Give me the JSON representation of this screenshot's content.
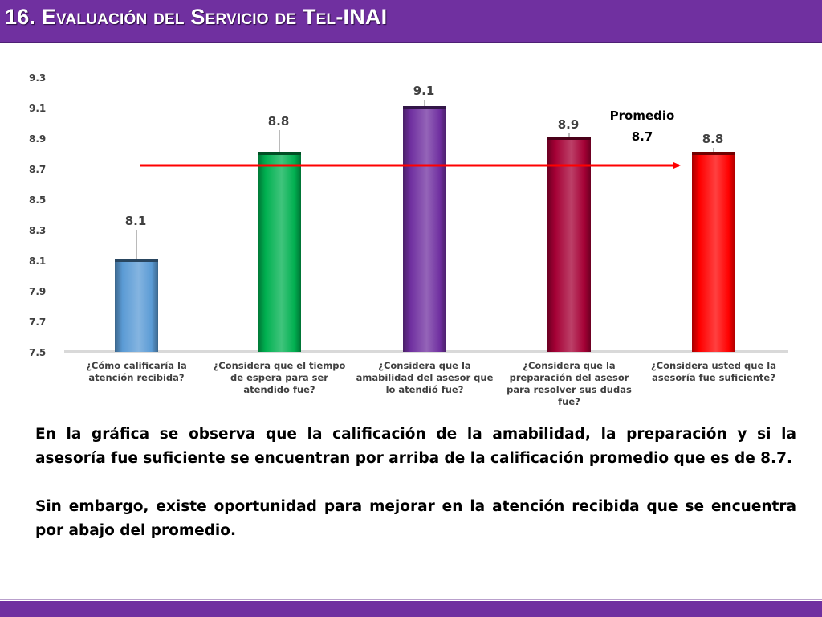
{
  "title": "16. Evaluación del Servicio de Tel-INAI",
  "chart_data": {
    "type": "bar",
    "categories": [
      "¿Cómo calificaría la atención recibida?",
      "¿Considera que el tiempo de espera para ser atendido fue?",
      "¿Considera que la amabilidad del asesor que lo atendió fue?",
      "¿Considera que la preparación del asesor para resolver sus dudas fue?",
      "¿Considera usted que la asesoría fue suficiente?"
    ],
    "values": [
      8.1,
      8.8,
      9.1,
      8.9,
      8.8
    ],
    "value_labels": [
      "8.1",
      "8.8",
      "9.1",
      "8.9",
      "8.8"
    ],
    "colors": [
      "#5b9bd5",
      "#00b050",
      "#7030a0",
      "#a50035",
      "#ff0000"
    ],
    "ylim": [
      7.5,
      9.3
    ],
    "yticks": [
      "9.3",
      "9.1",
      "8.9",
      "8.7",
      "8.5",
      "8.3",
      "8.1",
      "7.9",
      "7.7",
      "7.5"
    ],
    "average": 8.7,
    "average_label": "Promedio",
    "average_value_label": "8.7",
    "average_color": "#ff0000",
    "title": "",
    "xlabel": "",
    "ylabel": "",
    "grid": false
  },
  "notes": [
    "En la gráfica se observa que la calificación de la amabilidad, la preparación y si la asesoría fue suficiente se encuentran por arriba de la calificación promedio que es de 8.7.",
    "Sin embargo, existe oportunidad para mejorar en la atención recibida que se encuentra por abajo del promedio."
  ]
}
